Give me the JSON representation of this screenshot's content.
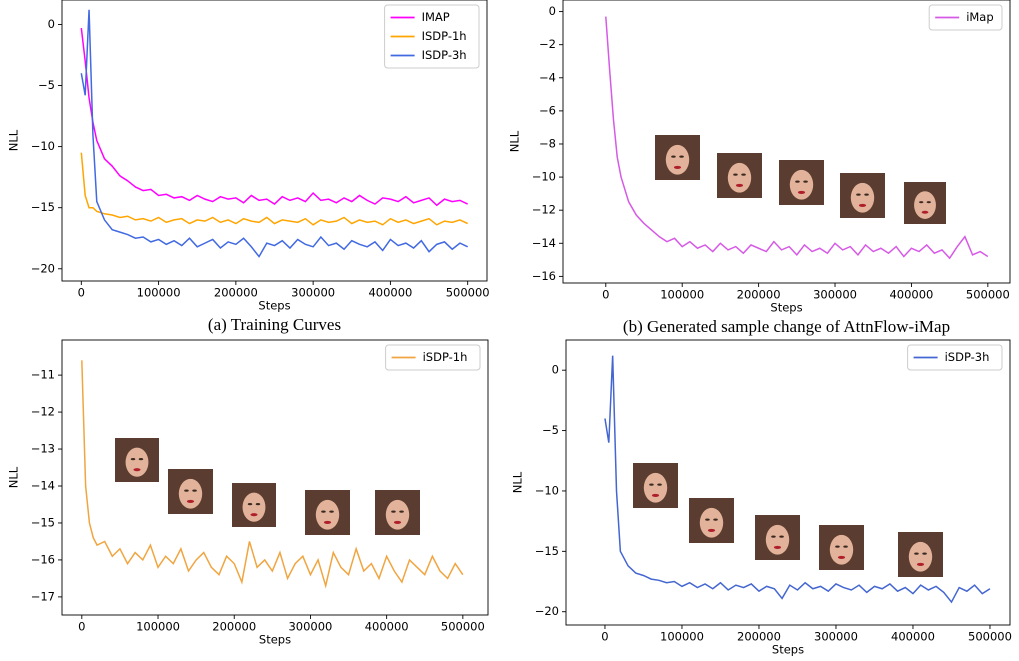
{
  "chart_data": [
    {
      "type": "line",
      "caption": "(a) Training Curves",
      "xlabel": "Steps",
      "ylabel": "NLL",
      "legend": "upper right",
      "x": [
        0,
        5000,
        10000,
        15000,
        20000,
        30000,
        40000,
        50000,
        60000,
        70000,
        80000,
        90000,
        100000,
        110000,
        120000,
        130000,
        140000,
        150000,
        160000,
        170000,
        180000,
        190000,
        200000,
        210000,
        220000,
        230000,
        240000,
        250000,
        260000,
        270000,
        280000,
        290000,
        300000,
        310000,
        320000,
        330000,
        340000,
        350000,
        360000,
        370000,
        380000,
        390000,
        400000,
        410000,
        420000,
        430000,
        440000,
        450000,
        460000,
        470000,
        480000,
        490000,
        500000
      ],
      "series": [
        {
          "name": "IMAP",
          "color": "#ff00ff",
          "values": [
            -0.3,
            -3,
            -6,
            -8,
            -9.5,
            -11,
            -11.6,
            -12.4,
            -12.8,
            -13.3,
            -13.6,
            -13.5,
            -14,
            -13.9,
            -14.2,
            -14.1,
            -14.4,
            -14,
            -14.3,
            -14.5,
            -14.1,
            -14.3,
            -14.2,
            -14.6,
            -14,
            -14.4,
            -14.3,
            -14.7,
            -14.1,
            -14.4,
            -14.2,
            -14.5,
            -13.8,
            -14.4,
            -14.3,
            -14.6,
            -14.2,
            -14.5,
            -14,
            -14.4,
            -14.7,
            -14.2,
            -14.3,
            -14.5,
            -14.1,
            -14.6,
            -14.4,
            -14.2,
            -14.8,
            -14.3,
            -14.5,
            -14.4,
            -14.7
          ]
        },
        {
          "name": "ISDP-1h",
          "color": "#ffa500",
          "values": [
            -10.5,
            -14,
            -15,
            -15,
            -15.3,
            -15.5,
            -15.6,
            -15.8,
            -15.7,
            -16,
            -15.9,
            -16.1,
            -15.8,
            -16.2,
            -16,
            -15.9,
            -16.3,
            -16,
            -16.1,
            -15.8,
            -16.2,
            -16,
            -16.3,
            -15.9,
            -16.1,
            -16.2,
            -15.8,
            -16.3,
            -16,
            -16.1,
            -16.2,
            -15.9,
            -16.4,
            -16,
            -16.2,
            -16.1,
            -15.8,
            -16.3,
            -16,
            -16.2,
            -16.1,
            -16.4,
            -15.9,
            -16.2,
            -16,
            -16.3,
            -16.1,
            -15.9,
            -16.4,
            -16.1,
            -16.2,
            -16,
            -16.3
          ]
        },
        {
          "name": "ISDP-3h",
          "color": "#4169e1",
          "values": [
            -4,
            -5.8,
            1.2,
            -9,
            -14.5,
            -16,
            -16.8,
            -17,
            -17.2,
            -17.5,
            -17.4,
            -17.8,
            -17.6,
            -18,
            -17.7,
            -18.1,
            -17.5,
            -18.2,
            -17.9,
            -17.6,
            -18.3,
            -17.8,
            -18,
            -17.5,
            -18.2,
            -19,
            -17.9,
            -18.1,
            -17.7,
            -18.3,
            -17.6,
            -18,
            -18.2,
            -17.4,
            -18.1,
            -17.9,
            -18.4,
            -17.7,
            -18,
            -18.2,
            -17.8,
            -18.5,
            -17.6,
            -18.1,
            -17.9,
            -18.3,
            -17.7,
            -18.6,
            -18,
            -17.8,
            -18.4,
            -17.9,
            -18.2
          ]
        }
      ],
      "xlim": [
        -25000,
        525000
      ],
      "xticks": [
        0,
        100000,
        200000,
        300000,
        400000,
        500000
      ],
      "ylim": [
        -21,
        2
      ],
      "yticks": [
        {
          "value": 0,
          "label": "0"
        },
        {
          "value": -5,
          "label": "−5"
        },
        {
          "value": -10,
          "label": "−10"
        },
        {
          "value": -15,
          "label": "−15"
        },
        {
          "value": -20,
          "label": "−20"
        }
      ]
    },
    {
      "type": "line",
      "caption": "(b) Generated sample change of AttnFlow-iMap",
      "xlabel": "Steps",
      "ylabel": "NLL",
      "legend": "upper right",
      "x": [
        0,
        5000,
        10000,
        15000,
        20000,
        30000,
        40000,
        50000,
        60000,
        70000,
        80000,
        90000,
        100000,
        110000,
        120000,
        130000,
        140000,
        150000,
        160000,
        170000,
        180000,
        190000,
        200000,
        210000,
        220000,
        230000,
        240000,
        250000,
        260000,
        270000,
        280000,
        290000,
        300000,
        310000,
        320000,
        330000,
        340000,
        350000,
        360000,
        370000,
        380000,
        390000,
        400000,
        410000,
        420000,
        430000,
        440000,
        450000,
        460000,
        470000,
        480000,
        490000,
        500000
      ],
      "series": [
        {
          "name": "iMap",
          "color": "#d65ae6",
          "values": [
            -0.3,
            -3.5,
            -6.5,
            -8.8,
            -10,
            -11.5,
            -12.3,
            -12.8,
            -13.2,
            -13.6,
            -13.9,
            -13.7,
            -14.2,
            -13.9,
            -14.3,
            -14.1,
            -14.5,
            -14,
            -14.4,
            -14.2,
            -14.6,
            -14.1,
            -14.3,
            -14.5,
            -13.9,
            -14.4,
            -14.2,
            -14.7,
            -14.1,
            -14.5,
            -14.3,
            -14.6,
            -14,
            -14.4,
            -14.2,
            -14.7,
            -14.1,
            -14.5,
            -14.3,
            -14.6,
            -14.2,
            -14.8,
            -14.3,
            -14.5,
            -14.1,
            -14.6,
            -14.4,
            -14.9,
            -14.2,
            -13.6,
            -14.7,
            -14.5,
            -14.8
          ]
        }
      ],
      "xlim": [
        -56000,
        529000
      ],
      "xticks": [
        0,
        100000,
        200000,
        300000,
        400000,
        500000
      ],
      "ylim": [
        -16.4,
        0.7
      ],
      "yticks": [
        {
          "value": 0,
          "label": "0"
        },
        {
          "value": -2,
          "label": "−2"
        },
        {
          "value": -4,
          "label": "−4"
        },
        {
          "value": -6,
          "label": "−6"
        },
        {
          "value": -8,
          "label": "−8"
        },
        {
          "value": -10,
          "label": "−10"
        },
        {
          "value": -12,
          "label": "−12"
        },
        {
          "value": -14,
          "label": "−14"
        },
        {
          "value": -16,
          "label": "−16"
        }
      ]
    },
    {
      "type": "line",
      "xlabel": "Steps",
      "ylabel": "NLL",
      "legend": "upper right",
      "x": [
        0,
        5000,
        10000,
        15000,
        20000,
        30000,
        40000,
        50000,
        60000,
        70000,
        80000,
        90000,
        100000,
        110000,
        120000,
        130000,
        140000,
        150000,
        160000,
        170000,
        180000,
        190000,
        200000,
        210000,
        220000,
        230000,
        240000,
        250000,
        260000,
        270000,
        280000,
        290000,
        300000,
        310000,
        320000,
        330000,
        340000,
        350000,
        360000,
        370000,
        380000,
        390000,
        400000,
        410000,
        420000,
        430000,
        440000,
        450000,
        460000,
        470000,
        480000,
        490000,
        500000
      ],
      "series": [
        {
          "name": "iSDP-1h",
          "color": "#f0a540",
          "values": [
            -10.6,
            -14,
            -15,
            -15.4,
            -15.6,
            -15.5,
            -15.9,
            -15.7,
            -16.1,
            -15.8,
            -16,
            -15.6,
            -16.2,
            -15.9,
            -16.1,
            -15.7,
            -16.3,
            -16,
            -15.8,
            -16.2,
            -16.4,
            -15.9,
            -16.1,
            -16.6,
            -15.5,
            -16.2,
            -16,
            -16.3,
            -15.8,
            -16.5,
            -16.1,
            -15.9,
            -16.4,
            -16,
            -16.7,
            -15.8,
            -16.2,
            -16.4,
            -15.7,
            -16.3,
            -16.1,
            -16.5,
            -15.9,
            -16.3,
            -16.6,
            -16,
            -16.2,
            -16.4,
            -15.9,
            -16.3,
            -16.5,
            -16.1,
            -16.4
          ]
        }
      ],
      "xlim": [
        -26000,
        533000
      ],
      "xticks": [
        0,
        100000,
        200000,
        300000,
        400000,
        500000
      ],
      "ylim": [
        -17.49,
        -10.05
      ],
      "yticks": [
        {
          "value": -11,
          "label": "−11"
        },
        {
          "value": -12,
          "label": "−12"
        },
        {
          "value": -13,
          "label": "−13"
        },
        {
          "value": -14,
          "label": "−14"
        },
        {
          "value": -15,
          "label": "−15"
        },
        {
          "value": -16,
          "label": "−16"
        },
        {
          "value": -17,
          "label": "−17"
        }
      ]
    },
    {
      "type": "line",
      "xlabel": "Steps",
      "ylabel": "NLL",
      "legend": "upper right",
      "x": [
        0,
        5000,
        10000,
        15000,
        20000,
        30000,
        40000,
        50000,
        60000,
        70000,
        80000,
        90000,
        100000,
        110000,
        120000,
        130000,
        140000,
        150000,
        160000,
        170000,
        180000,
        190000,
        200000,
        210000,
        220000,
        230000,
        240000,
        250000,
        260000,
        270000,
        280000,
        290000,
        300000,
        310000,
        320000,
        330000,
        340000,
        350000,
        360000,
        370000,
        380000,
        390000,
        400000,
        410000,
        420000,
        430000,
        440000,
        450000,
        460000,
        470000,
        480000,
        490000,
        500000
      ],
      "series": [
        {
          "name": "iSDP-3h",
          "color": "#4466d0",
          "values": [
            -4,
            -6,
            1.2,
            -10,
            -15,
            -16.2,
            -16.8,
            -17,
            -17.3,
            -17.4,
            -17.6,
            -17.5,
            -17.9,
            -17.6,
            -18,
            -17.7,
            -18.1,
            -17.6,
            -18.2,
            -17.8,
            -18,
            -17.7,
            -18.3,
            -17.9,
            -18.1,
            -18.9,
            -17.8,
            -18.2,
            -17.6,
            -18.1,
            -17.9,
            -18.3,
            -17.7,
            -18,
            -18.2,
            -17.8,
            -18.4,
            -17.9,
            -18.1,
            -17.7,
            -18.3,
            -18,
            -18.5,
            -17.8,
            -18.2,
            -17.9,
            -18.4,
            -19.2,
            -18,
            -18.3,
            -17.8,
            -18.5,
            -18.1
          ]
        }
      ],
      "xlim": [
        -50600,
        526000
      ],
      "xticks": [
        0,
        100000,
        200000,
        300000,
        400000,
        500000
      ],
      "ylim": [
        -21.1,
        2.5
      ],
      "yticks": [
        {
          "value": 0,
          "label": "0"
        },
        {
          "value": -5,
          "label": "−5"
        },
        {
          "value": -10,
          "label": "−10"
        },
        {
          "value": -15,
          "label": "−15"
        },
        {
          "value": -20,
          "label": "−20"
        }
      ]
    }
  ]
}
